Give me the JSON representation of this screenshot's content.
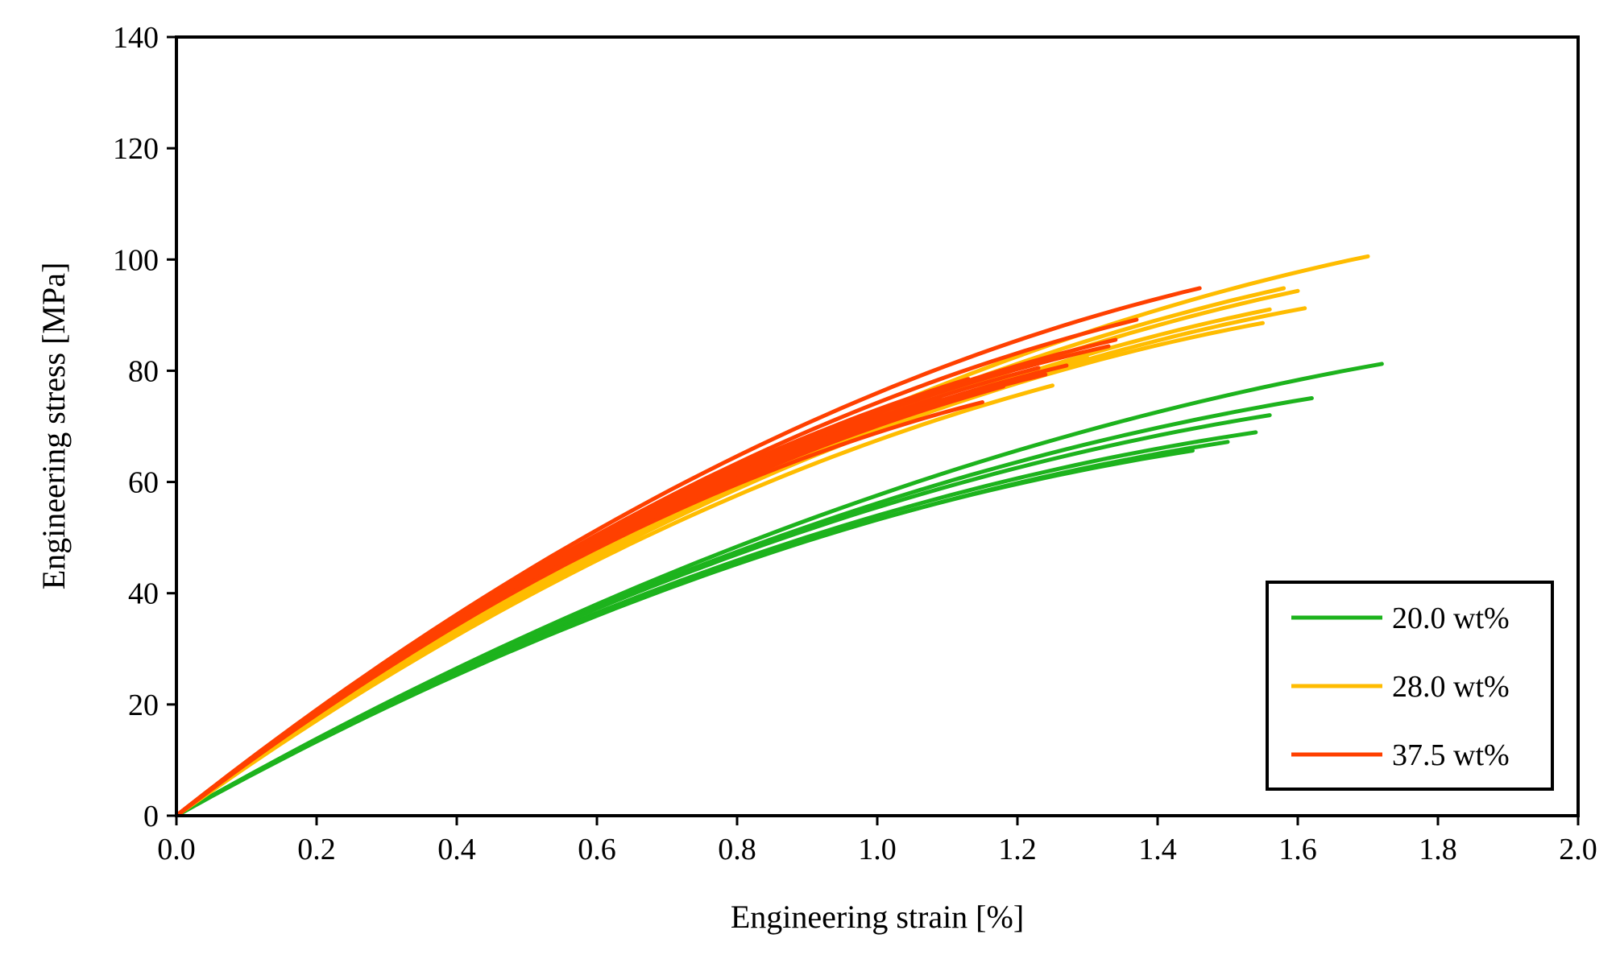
{
  "chart_data": {
    "type": "line",
    "title": "",
    "xlabel": "Engineering strain [%]",
    "ylabel": "Engineering stress [MPa]",
    "xlim": [
      0.0,
      2.0
    ],
    "ylim": [
      0,
      140
    ],
    "xticks": [
      "0.0",
      "0.2",
      "0.4",
      "0.6",
      "0.8",
      "1.0",
      "1.2",
      "1.4",
      "1.6",
      "1.8",
      "2.0"
    ],
    "yticks": [
      "0",
      "20",
      "40",
      "60",
      "80",
      "100",
      "120",
      "140"
    ],
    "grid": false,
    "legend_position": "bottom-right",
    "series": [
      {
        "name": "20.0 wt%",
        "color": "#1db31d",
        "curves": [
          {
            "modulus": 72,
            "curvature": 0.2,
            "end_strain": 1.72
          },
          {
            "modulus": 72,
            "curvature": 0.22,
            "end_strain": 1.62
          },
          {
            "modulus": 72,
            "curvature": 0.23,
            "end_strain": 1.56
          },
          {
            "modulus": 71,
            "curvature": 0.24,
            "end_strain": 1.54
          },
          {
            "modulus": 70,
            "curvature": 0.24,
            "end_strain": 1.5
          },
          {
            "modulus": 71,
            "curvature": 0.25,
            "end_strain": 1.45
          }
        ]
      },
      {
        "name": "28.0 wt%",
        "color": "#ffbc00",
        "curves": [
          {
            "modulus": 92,
            "curvature": 0.21,
            "end_strain": 1.7
          },
          {
            "modulus": 91,
            "curvature": 0.22,
            "end_strain": 1.6
          },
          {
            "modulus": 92,
            "curvature": 0.22,
            "end_strain": 1.58
          },
          {
            "modulus": 90,
            "curvature": 0.23,
            "end_strain": 1.61
          },
          {
            "modulus": 91,
            "curvature": 0.24,
            "end_strain": 1.55
          },
          {
            "modulus": 91,
            "curvature": 0.23,
            "end_strain": 1.56
          },
          {
            "modulus": 90,
            "curvature": 0.25,
            "end_strain": 1.25
          },
          {
            "modulus": 92,
            "curvature": 0.24,
            "end_strain": 1.3
          }
        ]
      },
      {
        "name": "37.5 wt%",
        "color": "#ff4000",
        "curves": [
          {
            "modulus": 100,
            "curvature": 0.24,
            "end_strain": 1.46
          },
          {
            "modulus": 99,
            "curvature": 0.25,
            "end_strain": 1.37
          },
          {
            "modulus": 98,
            "curvature": 0.26,
            "end_strain": 1.34
          },
          {
            "modulus": 99,
            "curvature": 0.27,
            "end_strain": 1.33
          },
          {
            "modulus": 97,
            "curvature": 0.27,
            "end_strain": 1.27
          },
          {
            "modulus": 98,
            "curvature": 0.27,
            "end_strain": 1.23
          },
          {
            "modulus": 99,
            "curvature": 0.27,
            "end_strain": 1.25
          },
          {
            "modulus": 97,
            "curvature": 0.27,
            "end_strain": 1.14
          },
          {
            "modulus": 100,
            "curvature": 0.27,
            "end_strain": 1.13
          },
          {
            "modulus": 98,
            "curvature": 0.28,
            "end_strain": 1.24
          },
          {
            "modulus": 96,
            "curvature": 0.27,
            "end_strain": 1.18
          },
          {
            "modulus": 99,
            "curvature": 0.28,
            "end_strain": 1.09
          },
          {
            "modulus": 97,
            "curvature": 0.29,
            "end_strain": 1.15
          }
        ]
      }
    ]
  }
}
